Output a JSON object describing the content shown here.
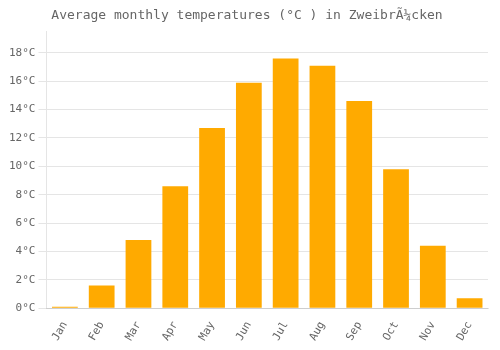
{
  "chart_data": {
    "type": "bar",
    "title": "Average monthly temperatures (°C ) in ZweibrÃ¼cken",
    "categories": [
      "Jan",
      "Feb",
      "Mar",
      "Apr",
      "May",
      "Jun",
      "Jul",
      "Aug",
      "Sep",
      "Oct",
      "Nov",
      "Dec"
    ],
    "values": [
      0.1,
      1.6,
      4.8,
      8.6,
      12.7,
      15.9,
      17.6,
      17.1,
      14.6,
      9.8,
      4.4,
      0.7
    ],
    "color": "#FFAA00",
    "ylim": [
      0,
      19.5
    ],
    "yticks": [
      {
        "value": 0,
        "label": "0°C"
      },
      {
        "value": 2,
        "label": "2°C"
      },
      {
        "value": 4,
        "label": "4°C"
      },
      {
        "value": 6,
        "label": "6°C"
      },
      {
        "value": 8,
        "label": "8°C"
      },
      {
        "value": 10,
        "label": "10°C"
      },
      {
        "value": 12,
        "label": "12°C"
      },
      {
        "value": 14,
        "label": "14°C"
      },
      {
        "value": 16,
        "label": "16°C"
      },
      {
        "value": 18,
        "label": "18°C"
      }
    ],
    "grid": true
  }
}
